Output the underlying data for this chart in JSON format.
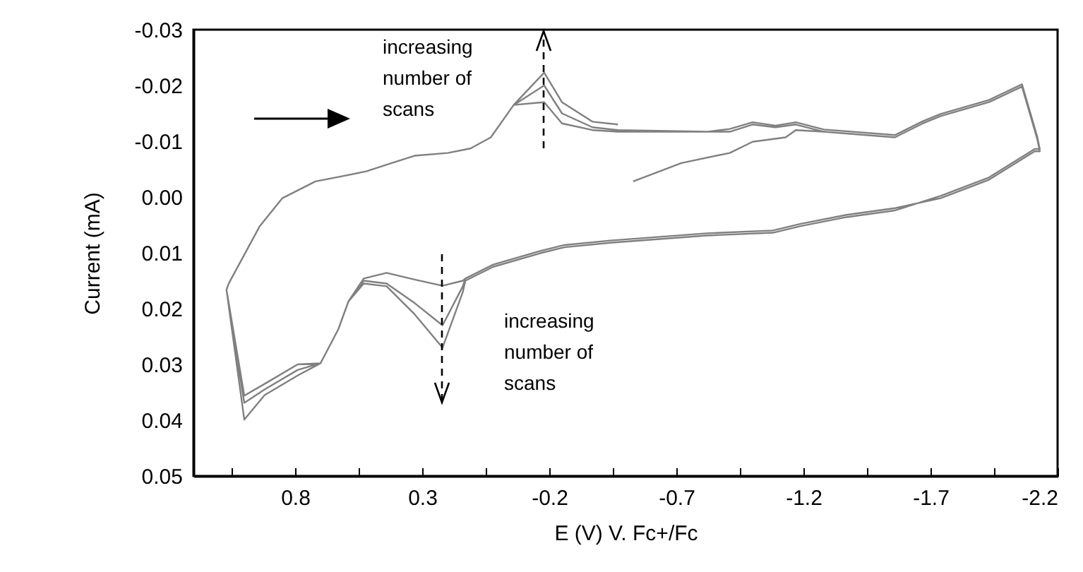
{
  "chart_data": {
    "type": "line",
    "xlabel": "E (V) V. Fc+/Fc",
    "ylabel": "Current (mA)",
    "xlim": [
      1.2,
      -2.2
    ],
    "ylim": [
      0.05,
      -0.03
    ],
    "xticks": [
      {
        "value": 1.05,
        "label": null
      },
      0.8,
      {
        "value": 0.55,
        "label": null
      },
      0.3,
      {
        "value": 0.05,
        "label": null
      },
      -0.2,
      {
        "value": -0.45,
        "label": null
      },
      -0.7,
      {
        "value": -0.95,
        "label": null
      },
      -1.2,
      {
        "value": -1.45,
        "label": null
      },
      -1.7,
      {
        "value": -1.95,
        "label": null
      },
      -2.2
    ],
    "yticks": [
      -0.03,
      -0.02,
      -0.01,
      {
        "value": 0,
        "label": "0.00"
      },
      0.01,
      0.02,
      0.03,
      0.04,
      0.05
    ],
    "grid": false,
    "annotations": [
      "increasing number of scans",
      "increasing number of scans"
    ],
    "series": [
      {
        "color": "#808080",
        "x": [
          -0.53,
          -0.72,
          -0.91,
          -1.0,
          -1.13,
          -1.17,
          -1.28,
          -1.56,
          -1.67,
          -1.74,
          -1.93,
          -2.06,
          -2.12,
          -2.13,
          -2.11,
          -1.93,
          -1.74,
          -1.56,
          -1.37,
          -1.19,
          -1.08,
          -0.82,
          -0.44,
          -0.26,
          -0.17,
          0.02,
          0.13,
          0.14,
          0.22,
          0.33,
          0.44,
          0.53,
          0.59,
          0.63,
          0.7,
          0.79,
          0.92,
          1.0,
          1.07,
          1.06,
          0.94,
          0.85,
          0.72,
          0.63,
          0.52,
          0.42,
          0.33,
          0.2,
          0.11,
          0.03,
          -0.06,
          -0.18,
          -0.25,
          -0.37,
          -0.47,
          -0.82,
          -0.91,
          -1.0,
          -1.09,
          -1.17,
          -1.28,
          -1.56,
          -1.67,
          -1.74,
          -1.93,
          -2.06,
          -2.12,
          -2.13,
          -2.11,
          -1.93,
          -1.74,
          -1.56,
          -1.37,
          -1.19,
          -1.08,
          -0.82,
          -0.44,
          -0.26,
          -0.17,
          0.02,
          0.13,
          0.14,
          0.22,
          0.33,
          0.44,
          0.53,
          0.59,
          0.63,
          0.7,
          0.79,
          0.92,
          1.0,
          1.07,
          1.06,
          0.94,
          0.85,
          0.72,
          0.63,
          0.52,
          0.42,
          0.33,
          0.2,
          0.11,
          0.03,
          -0.06,
          -0.18,
          -0.25,
          -0.37,
          -0.47,
          -0.82,
          -0.91,
          -1.0,
          -1.09,
          -1.17,
          -1.28,
          -1.56,
          -1.67,
          -1.74,
          -1.93,
          -2.06,
          -2.12,
          -2.13,
          -2.11,
          -1.93,
          -1.74,
          -1.56,
          -1.37,
          -1.19,
          -1.08,
          -0.82,
          -0.44,
          -0.26,
          -0.17,
          0.02,
          0.13,
          0.14,
          0.22,
          0.33,
          0.44,
          0.53,
          0.59,
          0.63,
          0.7,
          0.79,
          0.92,
          1.0,
          1.07,
          1.06,
          0.94,
          0.85,
          0.72,
          0.63,
          0.52,
          0.42,
          0.33,
          0.2,
          0.11,
          0.03,
          -0.06,
          -0.18,
          -0.25,
          -0.37,
          -0.47
        ],
        "values": [
          -0.0028,
          -0.0061,
          -0.0079,
          -0.0099,
          -0.0107,
          -0.012,
          -0.0117,
          -0.0107,
          -0.0132,
          -0.0145,
          -0.017,
          -0.0198,
          -0.0104,
          -0.0082,
          -0.0082,
          -0.0031,
          0.0002,
          0.002,
          0.0032,
          0.0048,
          0.006,
          0.0065,
          0.0078,
          0.0086,
          0.0096,
          0.0121,
          0.0146,
          0.015,
          0.0159,
          0.0148,
          0.0136,
          0.0146,
          0.0187,
          0.0237,
          0.0298,
          0.03,
          0.0335,
          0.0356,
          0.0166,
          0.0154,
          0.0053,
          0.0002,
          -0.0028,
          -0.0036,
          -0.0046,
          -0.0061,
          -0.0074,
          -0.0079,
          -0.0087,
          -0.0107,
          -0.0165,
          -0.017,
          -0.0132,
          -0.012,
          -0.0117,
          -0.0117,
          -0.0117,
          -0.013,
          -0.0125,
          -0.013,
          -0.0117,
          -0.0107,
          -0.0132,
          -0.0145,
          -0.017,
          -0.0198,
          -0.0104,
          -0.0082,
          -0.0082,
          -0.0031,
          0.0002,
          0.002,
          0.0032,
          0.0048,
          0.006,
          0.0065,
          0.0078,
          0.0086,
          0.0096,
          0.0121,
          0.0146,
          0.016,
          0.023,
          0.019,
          0.0155,
          0.015,
          0.0187,
          0.0237,
          0.0298,
          0.031,
          0.0345,
          0.0369,
          0.0166,
          0.0154,
          0.0053,
          0.0002,
          -0.0028,
          -0.0036,
          -0.0046,
          -0.0061,
          -0.0074,
          -0.0079,
          -0.0087,
          -0.0107,
          -0.0165,
          -0.02,
          -0.015,
          -0.0125,
          -0.012,
          -0.0117,
          -0.0122,
          -0.0134,
          -0.0128,
          -0.0134,
          -0.0121,
          -0.0111,
          -0.0136,
          -0.0149,
          -0.0174,
          -0.0202,
          -0.0108,
          -0.0086,
          -0.0086,
          -0.0035,
          -0.0002,
          0.0024,
          0.0036,
          0.0052,
          0.0064,
          0.0069,
          0.0082,
          0.009,
          0.01,
          0.0125,
          0.015,
          0.017,
          0.027,
          0.021,
          0.016,
          0.0155,
          0.0187,
          0.0237,
          0.0298,
          0.032,
          0.0355,
          0.0399,
          0.0166,
          0.0154,
          0.0053,
          0.0002,
          -0.0028,
          -0.0036,
          -0.0046,
          -0.0061,
          -0.0074,
          -0.0079,
          -0.0087,
          -0.0107,
          -0.0165,
          -0.0223,
          -0.017,
          -0.0135,
          -0.013
        ]
      }
    ]
  }
}
